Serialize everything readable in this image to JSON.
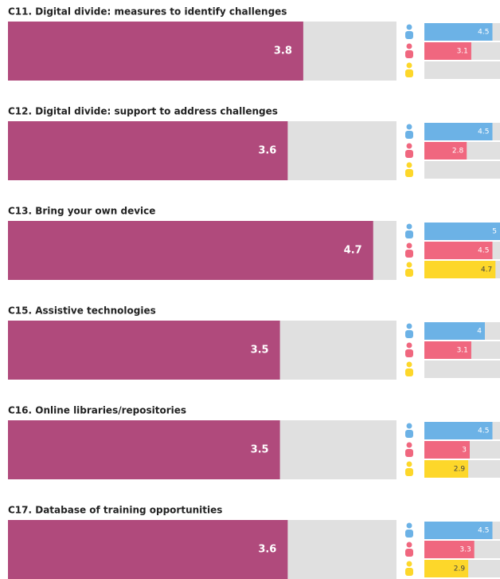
{
  "chart_data": {
    "type": "bar",
    "xlim": [
      0,
      5
    ],
    "color": "#b04a7c",
    "track_color": "#e0e0e0",
    "group_colors": [
      "#6cb2e6",
      "#f0677f",
      "#fdd72a"
    ],
    "items": [
      {
        "title": "C11. Digital divide: measures to identify challenges",
        "value": 3.8,
        "groups": [
          4.5,
          3.1,
          null
        ]
      },
      {
        "title": "C12. Digital divide: support to address challenges",
        "value": 3.6,
        "groups": [
          4.5,
          2.8,
          null
        ]
      },
      {
        "title": "C13. Bring your own device",
        "value": 4.7,
        "groups": [
          5,
          4.5,
          4.7
        ]
      },
      {
        "title": "C15. Assistive technologies",
        "value": 3.5,
        "groups": [
          4,
          3.1,
          null
        ]
      },
      {
        "title": "C16. Online libraries/repositories",
        "value": 3.5,
        "groups": [
          4.5,
          3,
          2.9
        ]
      },
      {
        "title": "C17. Database of training opportunities",
        "value": 3.6,
        "groups": [
          4.5,
          3.3,
          2.9
        ]
      }
    ]
  }
}
